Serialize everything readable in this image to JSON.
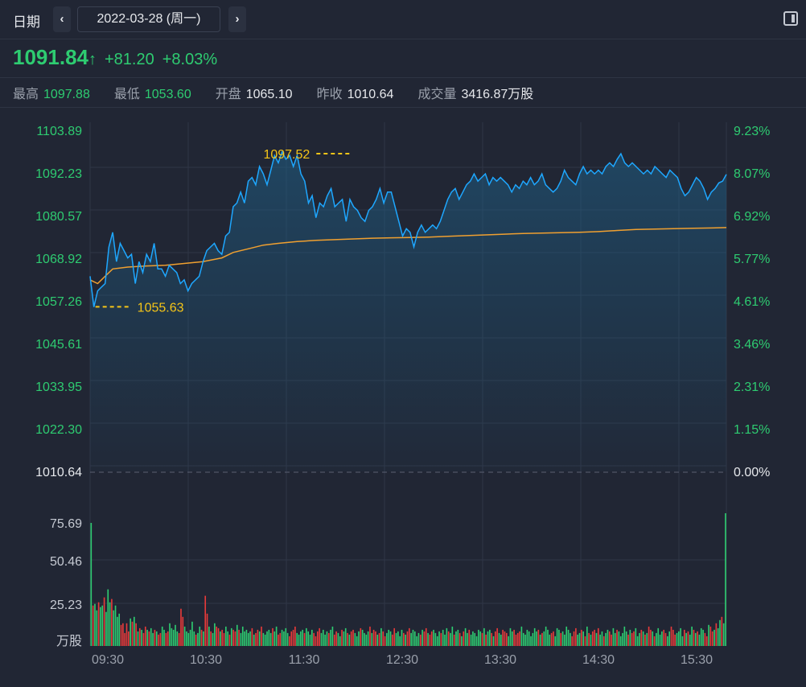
{
  "header": {
    "date_label": "日期",
    "prev_symbol": "‹",
    "next_symbol": "›",
    "date_value": "2022-03-28 (周一)",
    "panel_icon": "panel-toggle-icon"
  },
  "quote": {
    "price": "1091.84",
    "arrow": "↑",
    "change": "+81.20",
    "change_pct": "+8.03%",
    "color_up": "#2ecc71"
  },
  "stats": [
    {
      "label": "最高",
      "value": "1097.88",
      "tone": "up"
    },
    {
      "label": "最低",
      "value": "1053.60",
      "tone": "up"
    },
    {
      "label": "开盘",
      "value": "1065.10",
      "tone": "flat"
    },
    {
      "label": "昨收",
      "value": "1010.64",
      "tone": "flat"
    },
    {
      "label": "成交量",
      "value": "3416.87万股",
      "tone": "flat"
    }
  ],
  "chart_data": {
    "type": "line",
    "price_axis_labels": [
      "1103.89",
      "1092.23",
      "1080.57",
      "1068.92",
      "1057.26",
      "1045.61",
      "1033.95",
      "1022.30",
      "1010.64"
    ],
    "pct_axis_labels": [
      "9.23%",
      "8.07%",
      "6.92%",
      "5.77%",
      "4.61%",
      "3.46%",
      "2.31%",
      "1.15%",
      "0.00%"
    ],
    "price_range": [
      1010.64,
      1103.89
    ],
    "prev_close": 1010.64,
    "time_labels": [
      "09:30",
      "10:30",
      "11:30",
      "12:30",
      "13:30",
      "14:30",
      "15:30"
    ],
    "annotations": {
      "high_label": "1097.52",
      "high_point": {
        "x": 139,
        "y": 1097.52
      },
      "low_label": "1055.63",
      "low_point": {
        "x": 2,
        "y": 1055.63
      },
      "color": "#f5c518"
    },
    "price_series": [
      [
        0,
        1064.0
      ],
      [
        2,
        1055.6
      ],
      [
        4,
        1060.0
      ],
      [
        6,
        1061.0
      ],
      [
        8,
        1062.0
      ],
      [
        10,
        1072.0
      ],
      [
        12,
        1076.0
      ],
      [
        14,
        1068.0
      ],
      [
        16,
        1073.0
      ],
      [
        18,
        1071.0
      ],
      [
        20,
        1069.0
      ],
      [
        22,
        1070.0
      ],
      [
        24,
        1062.0
      ],
      [
        26,
        1068.0
      ],
      [
        28,
        1065.0
      ],
      [
        30,
        1070.0
      ],
      [
        32,
        1068.0
      ],
      [
        34,
        1073.0
      ],
      [
        36,
        1066.0
      ],
      [
        38,
        1066.0
      ],
      [
        40,
        1064.0
      ],
      [
        42,
        1067.0
      ],
      [
        44,
        1066.0
      ],
      [
        46,
        1065.0
      ],
      [
        48,
        1062.0
      ],
      [
        50,
        1063.0
      ],
      [
        52,
        1060.0
      ],
      [
        54,
        1062.0
      ],
      [
        56,
        1063.0
      ],
      [
        58,
        1064.0
      ],
      [
        60,
        1068.0
      ],
      [
        62,
        1071.0
      ],
      [
        64,
        1072.0
      ],
      [
        66,
        1073.0
      ],
      [
        68,
        1071.0
      ],
      [
        70,
        1070.0
      ],
      [
        72,
        1075.0
      ],
      [
        74,
        1076.0
      ],
      [
        76,
        1083.0
      ],
      [
        78,
        1084.0
      ],
      [
        80,
        1087.0
      ],
      [
        82,
        1084.0
      ],
      [
        84,
        1090.0
      ],
      [
        86,
        1091.0
      ],
      [
        88,
        1089.0
      ],
      [
        90,
        1094.0
      ],
      [
        92,
        1092.0
      ],
      [
        94,
        1089.0
      ],
      [
        96,
        1093.0
      ],
      [
        98,
        1097.0
      ],
      [
        100,
        1095.0
      ],
      [
        102,
        1098.0
      ],
      [
        104,
        1096.0
      ],
      [
        106,
        1097.0
      ],
      [
        108,
        1094.0
      ],
      [
        110,
        1097.0
      ],
      [
        112,
        1092.0
      ],
      [
        114,
        1090.0
      ],
      [
        116,
        1084.0
      ],
      [
        118,
        1086.0
      ],
      [
        120,
        1080.0
      ],
      [
        122,
        1084.0
      ],
      [
        124,
        1083.0
      ],
      [
        126,
        1086.0
      ],
      [
        128,
        1088.0
      ],
      [
        130,
        1083.0
      ],
      [
        132,
        1084.0
      ],
      [
        134,
        1085.0
      ],
      [
        136,
        1079.0
      ],
      [
        138,
        1085.0
      ],
      [
        140,
        1083.0
      ],
      [
        142,
        1082.0
      ],
      [
        144,
        1080.0
      ],
      [
        146,
        1079.0
      ],
      [
        148,
        1082.0
      ],
      [
        150,
        1083.0
      ],
      [
        152,
        1085.0
      ],
      [
        154,
        1088.0
      ],
      [
        156,
        1084.0
      ],
      [
        158,
        1087.0
      ],
      [
        160,
        1087.0
      ],
      [
        162,
        1083.0
      ],
      [
        164,
        1079.0
      ],
      [
        166,
        1075.0
      ],
      [
        168,
        1077.0
      ],
      [
        170,
        1076.0
      ],
      [
        172,
        1072.0
      ],
      [
        174,
        1076.0
      ],
      [
        176,
        1078.0
      ],
      [
        178,
        1076.0
      ],
      [
        180,
        1077.0
      ],
      [
        182,
        1078.0
      ],
      [
        184,
        1077.0
      ],
      [
        186,
        1079.0
      ],
      [
        188,
        1082.0
      ],
      [
        190,
        1085.0
      ],
      [
        192,
        1087.0
      ],
      [
        194,
        1088.0
      ],
      [
        196,
        1085.0
      ],
      [
        198,
        1087.0
      ],
      [
        200,
        1089.0
      ],
      [
        202,
        1090.0
      ],
      [
        204,
        1092.0
      ],
      [
        206,
        1090.0
      ],
      [
        208,
        1091.0
      ],
      [
        210,
        1092.0
      ],
      [
        212,
        1089.0
      ],
      [
        214,
        1091.0
      ],
      [
        216,
        1090.0
      ],
      [
        218,
        1091.0
      ],
      [
        220,
        1090.0
      ],
      [
        222,
        1089.0
      ],
      [
        224,
        1087.0
      ],
      [
        226,
        1089.0
      ],
      [
        228,
        1088.0
      ],
      [
        230,
        1090.0
      ],
      [
        232,
        1089.0
      ],
      [
        234,
        1091.0
      ],
      [
        236,
        1089.0
      ],
      [
        238,
        1090.0
      ],
      [
        240,
        1092.0
      ],
      [
        242,
        1089.0
      ],
      [
        244,
        1088.0
      ],
      [
        246,
        1087.0
      ],
      [
        248,
        1088.0
      ],
      [
        250,
        1090.0
      ],
      [
        252,
        1093.0
      ],
      [
        254,
        1091.0
      ],
      [
        256,
        1090.0
      ],
      [
        258,
        1089.0
      ],
      [
        260,
        1092.0
      ],
      [
        262,
        1094.0
      ],
      [
        264,
        1092.0
      ],
      [
        266,
        1093.0
      ],
      [
        268,
        1092.0
      ],
      [
        270,
        1093.0
      ],
      [
        272,
        1092.0
      ],
      [
        274,
        1094.0
      ],
      [
        276,
        1095.0
      ],
      [
        278,
        1094.0
      ],
      [
        280,
        1096.0
      ],
      [
        282,
        1097.5
      ],
      [
        284,
        1095.0
      ],
      [
        286,
        1094.0
      ],
      [
        288,
        1095.0
      ],
      [
        290,
        1094.0
      ],
      [
        292,
        1093.0
      ],
      [
        294,
        1092.0
      ],
      [
        296,
        1093.0
      ],
      [
        298,
        1092.0
      ],
      [
        300,
        1094.0
      ],
      [
        302,
        1093.0
      ],
      [
        304,
        1092.0
      ],
      [
        306,
        1091.0
      ],
      [
        308,
        1093.0
      ],
      [
        310,
        1092.0
      ],
      [
        312,
        1091.0
      ],
      [
        314,
        1088.0
      ],
      [
        316,
        1086.0
      ],
      [
        318,
        1087.0
      ],
      [
        320,
        1089.0
      ],
      [
        322,
        1091.0
      ],
      [
        324,
        1090.0
      ],
      [
        326,
        1088.0
      ],
      [
        328,
        1085.0
      ],
      [
        330,
        1087.0
      ],
      [
        332,
        1088.0
      ],
      [
        334,
        1089.5
      ],
      [
        336,
        1090.0
      ],
      [
        338,
        1091.84
      ]
    ],
    "avg_series": [
      [
        0,
        1063.0
      ],
      [
        4,
        1062.0
      ],
      [
        8,
        1064.0
      ],
      [
        12,
        1066.0
      ],
      [
        20,
        1066.5
      ],
      [
        30,
        1066.8
      ],
      [
        40,
        1067.0
      ],
      [
        50,
        1067.5
      ],
      [
        60,
        1068.0
      ],
      [
        70,
        1069.0
      ],
      [
        76,
        1070.5
      ],
      [
        84,
        1071.5
      ],
      [
        92,
        1072.5
      ],
      [
        100,
        1073.0
      ],
      [
        110,
        1073.5
      ],
      [
        120,
        1073.8
      ],
      [
        130,
        1074.0
      ],
      [
        140,
        1074.2
      ],
      [
        150,
        1074.4
      ],
      [
        160,
        1074.5
      ],
      [
        170,
        1074.6
      ],
      [
        180,
        1074.7
      ],
      [
        190,
        1074.9
      ],
      [
        200,
        1075.1
      ],
      [
        210,
        1075.3
      ],
      [
        220,
        1075.5
      ],
      [
        230,
        1075.7
      ],
      [
        240,
        1075.8
      ],
      [
        250,
        1075.9
      ],
      [
        260,
        1076.0
      ],
      [
        270,
        1076.2
      ],
      [
        280,
        1076.5
      ],
      [
        290,
        1076.8
      ],
      [
        300,
        1076.9
      ],
      [
        310,
        1077.0
      ],
      [
        320,
        1077.1
      ],
      [
        330,
        1077.2
      ],
      [
        338,
        1077.3
      ]
    ],
    "volume_axis_labels": [
      "75.69",
      "50.46",
      "25.23"
    ],
    "volume_unit": "万股",
    "volume_range": [
      0,
      80
    ],
    "volume": [
      76,
      25,
      26,
      22,
      27,
      24,
      25,
      30,
      21,
      35,
      27,
      29,
      22,
      25,
      18,
      20,
      13,
      14,
      8,
      14,
      9,
      17,
      15,
      18,
      14,
      9,
      11,
      10,
      8,
      12,
      10,
      9,
      11,
      8,
      10,
      9,
      7,
      8,
      12,
      10,
      8,
      9,
      14,
      11,
      10,
      13,
      9,
      8,
      23,
      18,
      12,
      9,
      8,
      10,
      15,
      9,
      7,
      8,
      12,
      10,
      9,
      31,
      20,
      12,
      9,
      8,
      14,
      12,
      11,
      9,
      10,
      8,
      12,
      9,
      7,
      11,
      10,
      9,
      13,
      10,
      8,
      12,
      9,
      10,
      8,
      9,
      11,
      7,
      8,
      10,
      9,
      12,
      8,
      7,
      9,
      10,
      8,
      11,
      9,
      12,
      7,
      8,
      10,
      9,
      11,
      8,
      6,
      9,
      10,
      12,
      8,
      7,
      9,
      10,
      8,
      11,
      9,
      7,
      10,
      8,
      6,
      9,
      11,
      8,
      10,
      7,
      9,
      8,
      10,
      12,
      7,
      9,
      8,
      6,
      10,
      9,
      11,
      8,
      7,
      9,
      10,
      8,
      6,
      9,
      11,
      10,
      8,
      7,
      9,
      12,
      8,
      10,
      9,
      7,
      8,
      11,
      9,
      6,
      8,
      10,
      9,
      7,
      11,
      8,
      9,
      6,
      10,
      8,
      7,
      9,
      11,
      8,
      10,
      9,
      6,
      8,
      7,
      10,
      9,
      11,
      8,
      7,
      9,
      10,
      8,
      6,
      9,
      8,
      10,
      7,
      11,
      9,
      8,
      12,
      7,
      9,
      10,
      8,
      6,
      9,
      11,
      8,
      10,
      7,
      9,
      8,
      6,
      10,
      9,
      8,
      11,
      7,
      9,
      10,
      8,
      6,
      9,
      11,
      8,
      7,
      10,
      9,
      8,
      6,
      11,
      9,
      10,
      7,
      8,
      9,
      12,
      8,
      7,
      10,
      9,
      6,
      8,
      11,
      9,
      10,
      7,
      8,
      9,
      12,
      10,
      7,
      8,
      9,
      6,
      11,
      10,
      8,
      9,
      7,
      12,
      10,
      8,
      6,
      9,
      11,
      7,
      8,
      10,
      9,
      6,
      12,
      8,
      7,
      9,
      10,
      8,
      11,
      7,
      9,
      6,
      8,
      10,
      9,
      7,
      11,
      8,
      10,
      9,
      6,
      8,
      12,
      9,
      7,
      10,
      8,
      9,
      11,
      6,
      8,
      10,
      9,
      7,
      8,
      12,
      10,
      9,
      6,
      8,
      11,
      7,
      9,
      10,
      8,
      6,
      9,
      12,
      10,
      7,
      8,
      9,
      11,
      6,
      10,
      8,
      9,
      7,
      12,
      10,
      8,
      9,
      7,
      11,
      10,
      8,
      6,
      13,
      12,
      9,
      10,
      14,
      11,
      16,
      18,
      14,
      82
    ]
  }
}
